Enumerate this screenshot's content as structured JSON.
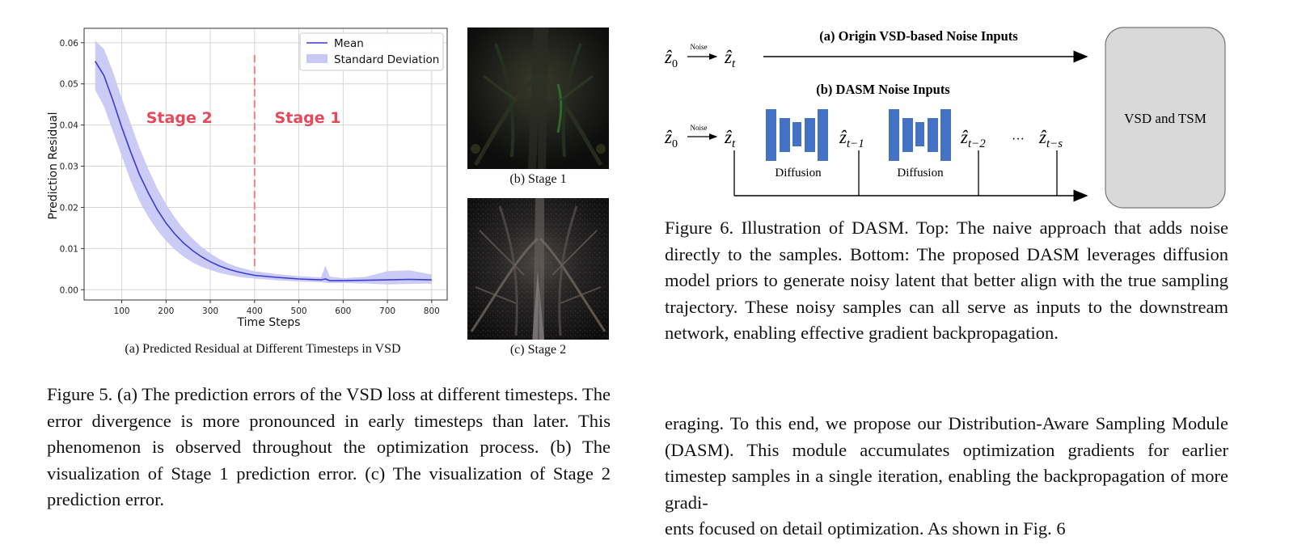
{
  "figure5": {
    "panel_a_caption": "(a) Predicted Residual at Different Timesteps in VSD",
    "panel_b_caption": "(b) Stage 1",
    "panel_c_caption": "(c) Stage 2",
    "caption": "Figure 5.  (a) The prediction errors of the VSD loss at different timesteps. The error divergence is more pronounced in early timesteps than later. This phenomenon is observed throughout the optimization process. (b) The visualization of Stage 1 prediction error. (c) The visualization of Stage 2 prediction error."
  },
  "chart_data": {
    "type": "line",
    "title": "",
    "xlabel": "Time Steps",
    "ylabel": "Prediction Residual",
    "xlim": [
      15,
      835
    ],
    "ylim": [
      -0.0025,
      0.0635
    ],
    "xticks": [
      "100",
      "200",
      "300",
      "400",
      "500",
      "600",
      "700",
      "800"
    ],
    "yticks": [
      "0.00",
      "0.01",
      "0.02",
      "0.03",
      "0.04",
      "0.05",
      "0.06"
    ],
    "grid": true,
    "legend_position": "top-right",
    "colors": {
      "mean": "#3b3bd1",
      "std": "#c8c8f5",
      "divider": "#f08080",
      "stage_label": "#e8485a"
    },
    "series": [
      {
        "name": "Mean",
        "x": [
          40,
          60,
          80,
          100,
          120,
          140,
          160,
          180,
          200,
          220,
          240,
          260,
          280,
          300,
          320,
          340,
          360,
          380,
          400,
          450,
          500,
          550,
          560,
          570,
          600,
          650,
          700,
          750,
          800
        ],
        "values": [
          0.0555,
          0.052,
          0.046,
          0.0395,
          0.0335,
          0.028,
          0.0235,
          0.0195,
          0.0162,
          0.0135,
          0.0113,
          0.0095,
          0.008,
          0.0068,
          0.0058,
          0.005,
          0.0044,
          0.0039,
          0.0035,
          0.003,
          0.0026,
          0.0024,
          0.0026,
          0.0022,
          0.0022,
          0.0023,
          0.0024,
          0.0025,
          0.0024
        ]
      },
      {
        "name": "Standard Deviation",
        "x": [
          40,
          60,
          80,
          100,
          120,
          140,
          160,
          180,
          200,
          220,
          240,
          260,
          280,
          300,
          320,
          340,
          360,
          380,
          400,
          450,
          500,
          550,
          560,
          570,
          600,
          650,
          700,
          750,
          800
        ],
        "upper": [
          0.0605,
          0.0585,
          0.053,
          0.0465,
          0.0405,
          0.0345,
          0.0293,
          0.0247,
          0.0208,
          0.0175,
          0.0147,
          0.0124,
          0.0104,
          0.0088,
          0.0075,
          0.0064,
          0.0056,
          0.005,
          0.0045,
          0.0038,
          0.0033,
          0.003,
          0.0058,
          0.0032,
          0.0028,
          0.0031,
          0.0045,
          0.0047,
          0.0037
        ],
        "lower": [
          0.0485,
          0.0445,
          0.0385,
          0.0325,
          0.0265,
          0.0215,
          0.0177,
          0.0145,
          0.0119,
          0.0097,
          0.008,
          0.0066,
          0.0056,
          0.0048,
          0.0041,
          0.0036,
          0.0032,
          0.0029,
          0.0027,
          0.0023,
          0.002,
          0.0018,
          0.0017,
          0.0016,
          0.0016,
          0.0015,
          0.0013,
          0.0014,
          0.0015
        ]
      }
    ],
    "annotations": [
      {
        "text": "Stage 2",
        "x": 230,
        "y": 0.0405
      },
      {
        "text": "Stage 1",
        "x": 520,
        "y": 0.0405
      }
    ],
    "divider_x": 400,
    "divider_top_y": 0.057
  },
  "figure6": {
    "top_title": "(a) Origin VSD-based Noise Inputs",
    "bottom_title": "(b) DASM Noise Inputs",
    "noise_label": "Noise",
    "diffusion_label_1": "Diffusion",
    "diffusion_label_2": "Diffusion",
    "box_label": "VSD and TSM",
    "ellipsis": "···",
    "z0_top": "ẑ",
    "z0_top_sub": "0",
    "zt_top": "ẑ",
    "zt_top_sub": "t",
    "z0_bottom": "ẑ",
    "z0_bottom_sub": "0",
    "zt_bottom": "ẑ",
    "zt_bottom_sub": "t",
    "zt1": "ẑ",
    "zt1_sub": "t−1",
    "zt2": "ẑ",
    "zt2_sub": "t−2",
    "zts": "ẑ",
    "zts_sub": "t−s",
    "colors": {
      "block": "#4472c4",
      "box_fill": "#d9d9d9",
      "box_stroke": "#777777"
    },
    "caption": "Figure 6.  Illustration of DASM. Top:  The naive approach that adds noise directly to the samples. Bottom: The proposed DASM leverages diffusion model priors to generate noisy latent that better align with the true sampling trajectory. These noisy samples can all serve as inputs to the downstream network, enabling effective gradient backpropagation."
  },
  "body_paragraph": {
    "text": "eraging.  To this end, we propose our Distribution-Aware Sampling Module (DASM). This module accumulates optimization gradients for earlier timestep samples in a single iteration, enabling the backpropagation of more gradi-",
    "tail": "ents focused on detail optimization.  As shown in Fig. 6"
  }
}
